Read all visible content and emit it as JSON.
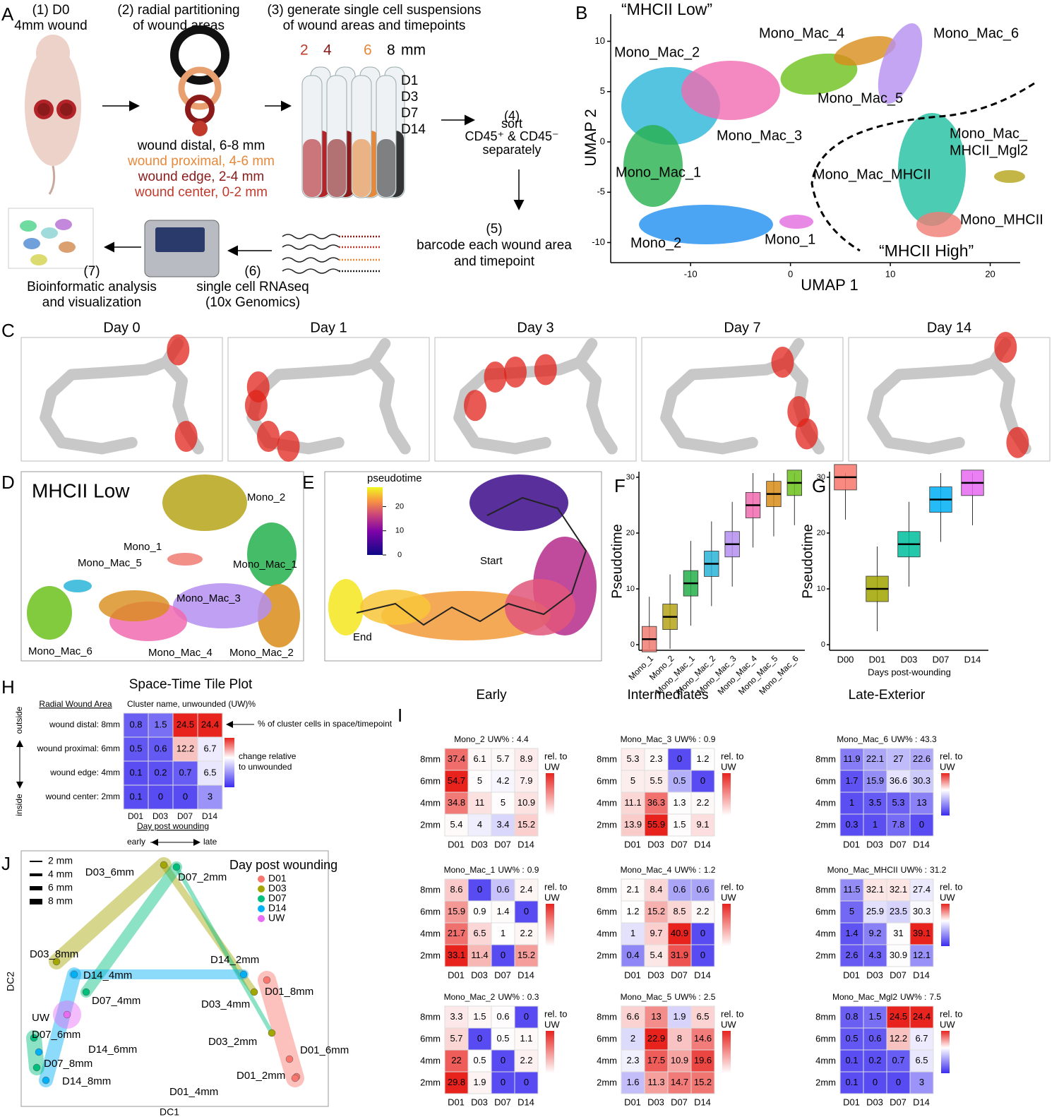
{
  "panel_letters": [
    "A",
    "B",
    "C",
    "D",
    "E",
    "F",
    "G",
    "H",
    "I",
    "J"
  ],
  "panel_a": {
    "step1": [
      "(1) D0",
      "4mm wound"
    ],
    "step2": [
      "(2) radial partitioning",
      "of wound areas"
    ],
    "step3": [
      "(3) generate single cell suspensions",
      "of wound areas and timepoints"
    ],
    "sizes": [
      {
        "text": "2",
        "color": "#c0392b"
      },
      {
        "text": "4",
        "color": "#8b1a1a"
      },
      {
        "text": "6",
        "color": "#e8893a"
      },
      {
        "text": "8",
        "color": "#000000"
      },
      {
        "text": "mm",
        "color": "#000000"
      }
    ],
    "days": [
      "D1",
      "D3",
      "D7",
      "D14"
    ],
    "areas": [
      {
        "text": "wound distal, 6-8 mm",
        "color": "#000000"
      },
      {
        "text": "wound proximal, 4-6 mm",
        "color": "#e8893a"
      },
      {
        "text": "wound edge, 2-4 mm",
        "color": "#8b1a1a"
      },
      {
        "text": "wound center, 0-2 mm",
        "color": "#c0392b"
      }
    ],
    "step4": [
      "(4)",
      "sort",
      "CD45⁺ & CD45⁻",
      "separately"
    ],
    "step5": [
      "(5)",
      "barcode each wound area",
      "and timepoint"
    ],
    "step6": [
      "(6)",
      "single cell RNAseq",
      "(10x Genomics)"
    ],
    "step7": [
      "(7)",
      "Bioinformatic analysis",
      "and visualization"
    ]
  },
  "panel_b": {
    "label_low": "“MHCII Low”",
    "label_high": "“MHCII High”",
    "xlabel": "UMAP 1",
    "ylabel": "UMAP 2",
    "xlim": [
      -18,
      23
    ],
    "ylim": [
      -12,
      12.7
    ],
    "xticks": [
      -10,
      0,
      10,
      20
    ],
    "yticks": [
      -10,
      -5,
      0,
      5,
      10
    ],
    "clusters": [
      {
        "lines": [
          "Mono_Mac_2"
        ],
        "color": "#2bb5d8"
      },
      {
        "lines": [
          "Mono_Mac_4"
        ],
        "color": "#f06bb0"
      },
      {
        "lines": [
          "Mono_Mac_6"
        ],
        "color": "#6cc11c"
      },
      {
        "lines": [
          "Mono_Mac_5"
        ],
        "color": "#d98c1a"
      },
      {
        "lines": [
          "Mono_Mac_3"
        ],
        "color": "#b58ff0"
      },
      {
        "lines": [
          "Mono_Mac_1"
        ],
        "color": "#25b04c"
      },
      {
        "lines": [
          "Mono_Mac_MHCII"
        ],
        "color": "#1e8ff0"
      },
      {
        "lines": [
          "Mono_Mac_",
          "MHCII_Mgl2"
        ],
        "color": "#e36be0"
      },
      {
        "lines": [
          "Mono_MHCII"
        ],
        "color": "#1fbfa0"
      },
      {
        "lines": [
          "Mono_2"
        ],
        "color": "#b5a418"
      },
      {
        "lines": [
          "Mono_1"
        ],
        "color": "#f07c73"
      }
    ]
  },
  "panel_c": {
    "days": [
      "Day 0",
      "Day 1",
      "Day 3",
      "Day 7",
      "Day 14"
    ]
  },
  "panel_d": {
    "title": "MHCII Low",
    "labels": [
      {
        "text": "Mono_2",
        "color": "#b5a418"
      },
      {
        "text": "Mono_1",
        "color": "#f07c73"
      },
      {
        "text": "Mono_Mac_1",
        "color": "#25b04c"
      },
      {
        "text": "Mono_Mac_5",
        "color": "#d98c1a"
      },
      {
        "text": "Mono_Mac_3",
        "color": "#b58ff0"
      },
      {
        "text": "Mono_Mac_6",
        "color": "#6cc11c"
      },
      {
        "text": "Mono_Mac_4",
        "color": "#f06bb0"
      },
      {
        "text": "Mono_Mac_2",
        "color": "#2bb5d8"
      }
    ]
  },
  "panel_e": {
    "legend_title": "pseudotime",
    "legend_lim": [
      0,
      28
    ],
    "legend_ticks": [
      0,
      10,
      20
    ],
    "start": "Start",
    "end": "End"
  },
  "panel_f": {
    "ylabel": "Pseudotime",
    "ylim": [
      -1,
      31
    ],
    "yticks": [
      0,
      10,
      20,
      30
    ],
    "categories": [
      "Mono_1",
      "Mono_2",
      "Mono_Mac_1",
      "Mono_Mac_2",
      "Mono_Mac_3",
      "Mono_Mac_4",
      "Mono_Mac_5",
      "Mono_Mac_6"
    ],
    "medians": [
      1,
      5,
      11,
      14.5,
      18,
      25,
      27,
      29
    ],
    "colors": [
      "#f07c73",
      "#b5a418",
      "#25b04c",
      "#2bb5d8",
      "#b58ff0",
      "#f06bb0",
      "#d98c1a",
      "#6cc11c"
    ]
  },
  "panel_g": {
    "ylabel": "Pseudotime",
    "xlabel": "Days post-wounding",
    "ylim": [
      -1,
      31
    ],
    "yticks": [
      0,
      10,
      20,
      30
    ],
    "categories": [
      "D00",
      "D01",
      "D03",
      "D07",
      "D14"
    ],
    "medians": [
      30,
      10,
      18,
      26,
      29
    ],
    "colors": [
      "#f8766d",
      "#a3a500",
      "#00bf9d",
      "#00b0f6",
      "#e76bf3"
    ]
  },
  "panel_h": {
    "title": "Space-Time Tile Plot",
    "row_header": "Radial Wound Area",
    "col_header": "Cluster name, unwounded (UW)%",
    "rows": [
      "wound distal: 8mm",
      "wound proximal: 6mm",
      "wound edge: 4mm",
      "wound center: 2mm"
    ],
    "columns": [
      "D01",
      "D03",
      "D07",
      "D14"
    ],
    "values": [
      [
        0.8,
        1.5,
        24.5,
        24.4
      ],
      [
        0.5,
        0.6,
        12.2,
        6.7
      ],
      [
        0.1,
        0.2,
        0.7,
        6.5
      ],
      [
        0.1,
        0,
        0,
        3
      ]
    ],
    "annotation": "% of cluster cells in space/timepoint",
    "legend": [
      "change relative",
      "to unwounded"
    ],
    "outside": "outside",
    "inside": "inside",
    "xlabel": "Day post wounding",
    "early": "early",
    "late": "late"
  },
  "panel_i": {
    "rows": [
      "8mm",
      "6mm",
      "4mm",
      "2mm"
    ],
    "columns": [
      "D01",
      "D03",
      "D07",
      "D14"
    ],
    "uw_label": "UW% :",
    "legend": [
      "rel. to",
      "UW"
    ],
    "groups": [
      {
        "name": "Early",
        "heatmaps": [
          {
            "name": "Mono_2",
            "uw": 4.4,
            "values": [
              [
                37.4,
                6.1,
                5.7,
                8.9
              ],
              [
                54.7,
                5,
                4.2,
                7.9
              ],
              [
                34.8,
                11,
                5,
                10.9
              ],
              [
                5.4,
                4,
                3.4,
                15.2
              ]
            ]
          },
          {
            "name": "Mono_Mac_1",
            "uw": 0.9,
            "values": [
              [
                8.6,
                0,
                0.6,
                2.4
              ],
              [
                15.9,
                0.9,
                1.4,
                0
              ],
              [
                21.7,
                6.5,
                1,
                2.2
              ],
              [
                33.1,
                11.4,
                0,
                15.2
              ]
            ]
          },
          {
            "name": "Mono_Mac_2",
            "uw": 0.3,
            "values": [
              [
                3.3,
                1.5,
                0.6,
                0
              ],
              [
                5.7,
                0,
                0.5,
                1.1
              ],
              [
                22,
                0.5,
                0,
                2.2
              ],
              [
                29.8,
                1.9,
                0,
                0
              ]
            ]
          }
        ]
      },
      {
        "name": "Intermediates",
        "heatmaps": [
          {
            "name": "Mono_Mac_3",
            "uw": 0.9,
            "values": [
              [
                5.3,
                2.3,
                0,
                1.2
              ],
              [
                5,
                5.5,
                0.5,
                0
              ],
              [
                11.1,
                36.3,
                1.3,
                2.2
              ],
              [
                13.9,
                55.9,
                1.5,
                9.1
              ]
            ]
          },
          {
            "name": "Mono_Mac_4",
            "uw": 1.2,
            "values": [
              [
                2.1,
                8.4,
                0.6,
                0.6
              ],
              [
                1.2,
                15.2,
                8.5,
                2.2
              ],
              [
                1,
                9.7,
                40.9,
                0
              ],
              [
                0.4,
                5.4,
                31.9,
                0
              ]
            ]
          },
          {
            "name": "Mono_Mac_5",
            "uw": 2.5,
            "values": [
              [
                6.6,
                13,
                1.9,
                6.5
              ],
              [
                2,
                22.9,
                8,
                14.6
              ],
              [
                2.3,
                17.5,
                10.9,
                19.6
              ],
              [
                1.6,
                11.3,
                14.7,
                15.2
              ]
            ]
          }
        ]
      },
      {
        "name": "Late-Exterior",
        "heatmaps": [
          {
            "name": "Mono_Mac_6",
            "uw": 43.3,
            "values": [
              [
                11.9,
                22.1,
                27,
                22.6
              ],
              [
                1.7,
                15.9,
                36.6,
                30.3
              ],
              [
                1,
                3.5,
                5.3,
                13
              ],
              [
                0.3,
                1,
                7.8,
                0
              ]
            ]
          },
          {
            "name": "Mono_Mac_MHCII",
            "uw": 31.2,
            "values": [
              [
                11.5,
                32.1,
                32.1,
                27.4
              ],
              [
                5,
                25.9,
                23.5,
                30.3
              ],
              [
                1.4,
                9.2,
                31,
                39.1
              ],
              [
                2.6,
                4.3,
                30.9,
                12.1
              ]
            ]
          },
          {
            "name": "Mono_Mac_Mgl2",
            "uw": 7.5,
            "values": [
              [
                0.8,
                1.5,
                24.5,
                24.4
              ],
              [
                0.5,
                0.6,
                12.2,
                6.7
              ],
              [
                0.1,
                0.2,
                0.7,
                6.5
              ],
              [
                0.1,
                0,
                0,
                3
              ]
            ]
          }
        ]
      }
    ]
  },
  "panel_j": {
    "xlabel": "DC1",
    "ylabel": "DC2",
    "sizes": [
      "2 mm",
      "4 mm",
      "6 mm",
      "8 mm"
    ],
    "legend_title": "Day post wounding",
    "groups": [
      {
        "name": "D01",
        "color": "#f8766d"
      },
      {
        "name": "D03",
        "color": "#a3a500"
      },
      {
        "name": "D07",
        "color": "#00bf7d"
      },
      {
        "name": "D14",
        "color": "#00b0f6"
      },
      {
        "name": "UW",
        "color": "#e76bf3"
      }
    ],
    "points": [
      "D03_6mm",
      "D07_2mm",
      "D03_8mm",
      "D14_4mm",
      "D07_4mm",
      "D14_2mm",
      "D03_4mm",
      "D01_8mm",
      "UW",
      "D07_6mm",
      "D14_6mm",
      "D07_8mm",
      "D14_8mm",
      "D03_2mm",
      "D01_6mm",
      "D01_2mm",
      "D01_4mm"
    ]
  }
}
